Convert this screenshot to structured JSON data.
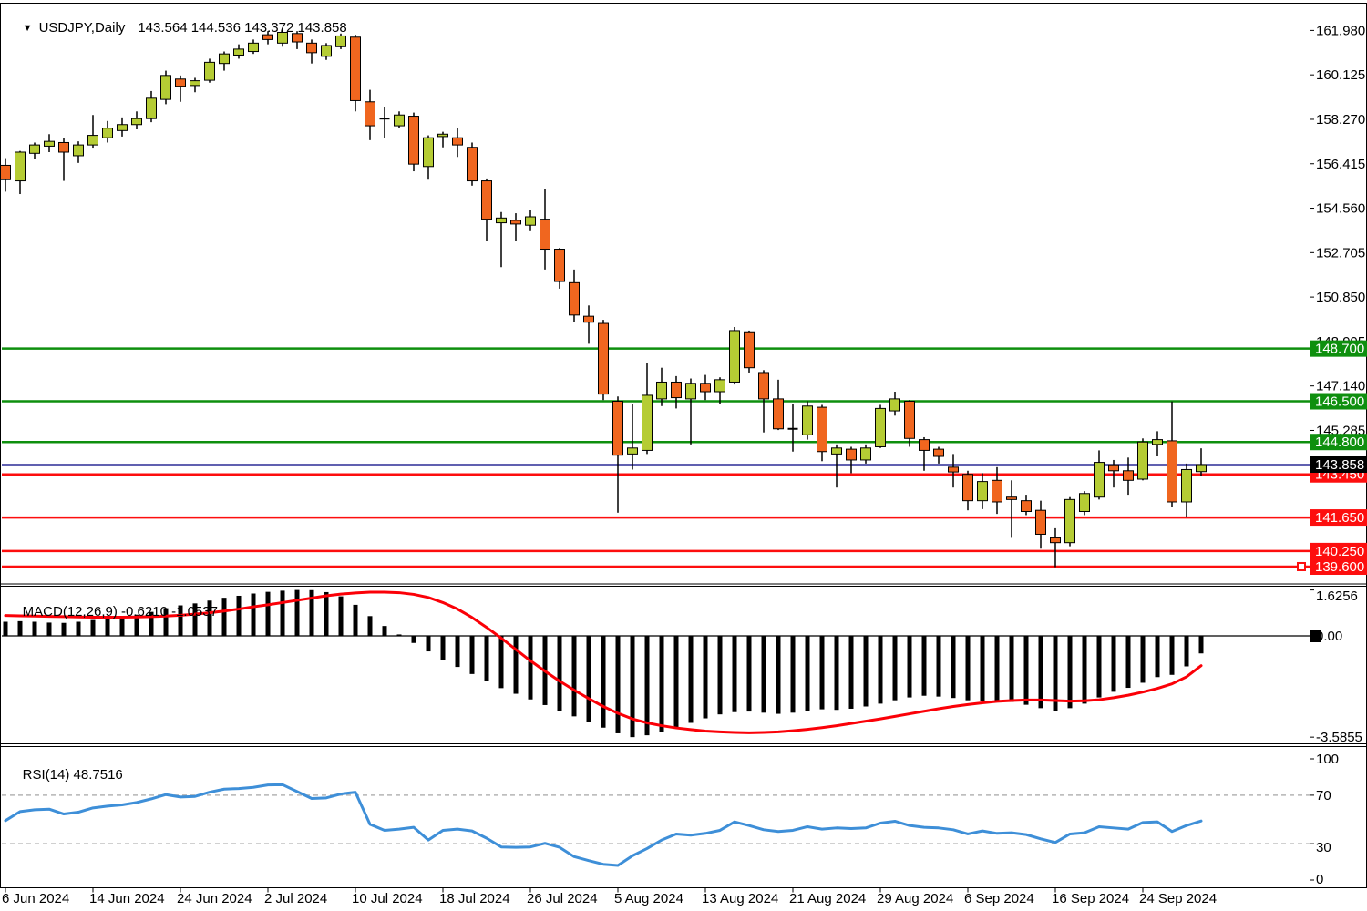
{
  "title": {
    "dropdown_glyph": "▼",
    "symbol": "USDJPY,Daily",
    "ohlc_text": "143.564 144.536 143.372 143.858"
  },
  "colors": {
    "bull": "#b5cc34",
    "bear": "#f0661f",
    "candle_outline": "#000000",
    "level_green": "#0e8f0e",
    "level_red": "#fd0e0e",
    "current_badge_bg": "#000000",
    "current_line": "#000080",
    "macd_hist": "#000000",
    "macd_signal": "#fb0007",
    "rsi_line": "#3e8fd8",
    "rsi_dashed": "#b5b5b5",
    "axis_text": "#000000",
    "badge_text": "#ffffff"
  },
  "axis": {
    "price_ticks": [
      "161.980",
      "160.125",
      "158.270",
      "156.415",
      "154.560",
      "152.705",
      "150.850",
      "148.995",
      "147.140",
      "145.285"
    ],
    "macd_ticks": [
      "1.6256",
      "0.00",
      "-3.5855"
    ],
    "rsi_ticks": [
      "100",
      "70",
      "30",
      "0"
    ],
    "dates": [
      "6 Jun 2024",
      "14 Jun 2024",
      "24 Jun 2024",
      "2 Jul 2024",
      "10 Jul 2024",
      "18 Jul 2024",
      "26 Jul 2024",
      "5 Aug 2024",
      "13 Aug 2024",
      "21 Aug 2024",
      "29 Aug 2024",
      "6 Sep 2024",
      "16 Sep 2024",
      "24 Sep 2024"
    ],
    "date_bar_indexes": [
      0,
      6,
      12,
      18,
      24,
      30,
      36,
      42,
      48,
      54,
      60,
      66,
      72,
      78
    ]
  },
  "panels": {
    "macd_name": "MACD(12,26,9)",
    "macd_values": "-0.6210 -1.0537",
    "rsi_name": "RSI(14)",
    "rsi_value": "48.7516"
  },
  "levels": [
    {
      "value": "148.700",
      "price": 148.7,
      "kind": "green"
    },
    {
      "value": "146.500",
      "price": 146.5,
      "kind": "green"
    },
    {
      "value": "144.800",
      "price": 144.8,
      "kind": "green"
    },
    {
      "value": "143.450",
      "price": 143.45,
      "kind": "red"
    },
    {
      "value": "141.650",
      "price": 141.65,
      "kind": "red"
    },
    {
      "value": "140.250",
      "price": 140.25,
      "kind": "red"
    },
    {
      "value": "139.600",
      "price": 139.6,
      "kind": "red",
      "handle": true
    }
  ],
  "current_price": {
    "value": "143.858",
    "price": 143.858
  },
  "chart_data": [
    {
      "type": "candlestick",
      "title": "USDJPY,Daily",
      "ylim": [
        139.0,
        162.4
      ],
      "x_dates": [
        "6 Jun 2024",
        "14 Jun 2024",
        "24 Jun 2024",
        "2 Jul 2024",
        "10 Jul 2024",
        "18 Jul 2024",
        "26 Jul 2024",
        "5 Aug 2024",
        "13 Aug 2024",
        "21 Aug 2024",
        "29 Aug 2024",
        "6 Sep 2024",
        "16 Sep 2024",
        "24 Sep 2024"
      ],
      "ohlc": [
        [
          156.35,
          156.65,
          155.25,
          155.75
        ],
        [
          155.7,
          156.95,
          155.15,
          156.9
        ],
        [
          156.85,
          157.3,
          156.6,
          157.2
        ],
        [
          157.15,
          157.65,
          156.9,
          157.35
        ],
        [
          157.3,
          157.5,
          155.7,
          156.9
        ],
        [
          156.75,
          157.35,
          156.45,
          157.2
        ],
        [
          157.2,
          158.45,
          157.05,
          157.6
        ],
        [
          157.5,
          158.2,
          157.3,
          157.9
        ],
        [
          157.8,
          158.35,
          157.55,
          158.05
        ],
        [
          158.05,
          158.6,
          157.85,
          158.3
        ],
        [
          158.3,
          159.45,
          158.15,
          159.15
        ],
        [
          159.1,
          160.3,
          158.9,
          160.1
        ],
        [
          159.95,
          160.1,
          159.0,
          159.65
        ],
        [
          159.68,
          160.0,
          159.4,
          159.88
        ],
        [
          159.9,
          160.8,
          159.8,
          160.65
        ],
        [
          160.6,
          161.1,
          160.3,
          161.0
        ],
        [
          160.95,
          161.4,
          160.8,
          161.2
        ],
        [
          161.1,
          161.6,
          161.0,
          161.45
        ],
        [
          161.8,
          161.95,
          161.4,
          161.6
        ],
        [
          161.45,
          162.0,
          161.3,
          161.9
        ],
        [
          161.85,
          161.95,
          161.2,
          161.5
        ],
        [
          161.45,
          161.6,
          160.6,
          161.05
        ],
        [
          160.9,
          161.45,
          160.75,
          161.35
        ],
        [
          161.3,
          161.85,
          161.2,
          161.75
        ],
        [
          161.7,
          161.8,
          158.6,
          159.05
        ],
        [
          159.0,
          159.5,
          157.4,
          158.0
        ],
        [
          158.25,
          158.8,
          157.5,
          158.3
        ],
        [
          158.0,
          158.6,
          157.9,
          158.45
        ],
        [
          158.4,
          158.55,
          156.1,
          156.4
        ],
        [
          156.3,
          157.6,
          155.75,
          157.5
        ],
        [
          157.55,
          157.75,
          157.1,
          157.65
        ],
        [
          157.5,
          157.9,
          156.7,
          157.2
        ],
        [
          157.1,
          157.3,
          155.5,
          155.7
        ],
        [
          155.7,
          155.8,
          153.2,
          154.1
        ],
        [
          153.95,
          154.4,
          152.1,
          154.15
        ],
        [
          154.05,
          154.35,
          153.2,
          153.9
        ],
        [
          153.85,
          154.5,
          153.6,
          154.2
        ],
        [
          154.1,
          155.35,
          152.0,
          152.85
        ],
        [
          152.85,
          152.9,
          151.2,
          151.5
        ],
        [
          151.45,
          152.0,
          149.8,
          150.1
        ],
        [
          150.05,
          150.5,
          148.9,
          149.8
        ],
        [
          149.75,
          149.9,
          146.55,
          146.8
        ],
        [
          146.5,
          146.7,
          141.85,
          144.25
        ],
        [
          144.3,
          146.4,
          143.65,
          144.55
        ],
        [
          144.45,
          148.1,
          144.3,
          146.75
        ],
        [
          146.6,
          147.9,
          146.3,
          147.3
        ],
        [
          147.3,
          147.55,
          146.2,
          146.65
        ],
        [
          146.6,
          147.45,
          144.7,
          147.25
        ],
        [
          147.25,
          147.6,
          146.55,
          146.9
        ],
        [
          146.9,
          147.5,
          146.4,
          147.4
        ],
        [
          147.3,
          149.6,
          147.2,
          149.45
        ],
        [
          149.4,
          149.45,
          147.7,
          147.9
        ],
        [
          147.7,
          147.8,
          145.2,
          146.6
        ],
        [
          146.6,
          147.4,
          145.3,
          145.35
        ],
        [
          145.35,
          146.4,
          144.4,
          145.3
        ],
        [
          145.1,
          146.5,
          144.9,
          146.3
        ],
        [
          146.25,
          146.35,
          144.0,
          144.4
        ],
        [
          144.3,
          144.7,
          142.9,
          144.55
        ],
        [
          144.5,
          144.6,
          143.5,
          144.05
        ],
        [
          144.05,
          144.7,
          143.9,
          144.55
        ],
        [
          144.6,
          146.35,
          144.55,
          146.2
        ],
        [
          146.1,
          146.9,
          145.9,
          146.6
        ],
        [
          146.5,
          146.55,
          144.6,
          144.95
        ],
        [
          144.9,
          145.0,
          143.6,
          144.45
        ],
        [
          144.5,
          144.6,
          143.9,
          144.2
        ],
        [
          143.75,
          144.3,
          142.9,
          143.55
        ],
        [
          143.45,
          143.6,
          141.95,
          142.35
        ],
        [
          142.35,
          143.5,
          142.0,
          143.15
        ],
        [
          143.2,
          143.75,
          141.8,
          142.3
        ],
        [
          142.5,
          143.2,
          140.8,
          142.4
        ],
        [
          142.35,
          142.6,
          141.75,
          141.9
        ],
        [
          141.95,
          142.35,
          140.35,
          140.95
        ],
        [
          140.8,
          141.2,
          139.58,
          140.6
        ],
        [
          140.6,
          142.5,
          140.45,
          142.4
        ],
        [
          141.9,
          142.75,
          141.75,
          142.65
        ],
        [
          142.5,
          144.45,
          142.4,
          143.95
        ],
        [
          143.85,
          144.05,
          142.9,
          143.6
        ],
        [
          143.6,
          144.15,
          142.6,
          143.2
        ],
        [
          143.25,
          144.95,
          143.2,
          144.8
        ],
        [
          144.7,
          145.25,
          144.2,
          144.9
        ],
        [
          144.85,
          146.49,
          142.1,
          142.3
        ],
        [
          142.3,
          143.9,
          141.65,
          143.65
        ],
        [
          143.564,
          144.536,
          143.372,
          143.858
        ]
      ]
    },
    {
      "type": "bar",
      "name": "MACD(12,26,9)",
      "last_values": "-0.6210 -1.0537",
      "ylim": [
        -3.5855,
        1.6256
      ],
      "hist": [
        0.5,
        0.52,
        0.5,
        0.47,
        0.46,
        0.5,
        0.56,
        0.62,
        0.68,
        0.75,
        0.85,
        0.98,
        1.08,
        1.15,
        1.25,
        1.35,
        1.42,
        1.5,
        1.56,
        1.6,
        1.6256,
        1.62,
        1.55,
        1.4,
        1.1,
        0.7,
        0.35,
        0.05,
        -0.25,
        -0.55,
        -0.85,
        -1.1,
        -1.35,
        -1.6,
        -1.85,
        -2.05,
        -2.25,
        -2.45,
        -2.65,
        -2.85,
        -3.05,
        -3.25,
        -3.45,
        -3.5855,
        -3.52,
        -3.4,
        -3.25,
        -3.08,
        -2.92,
        -2.78,
        -2.7,
        -2.68,
        -2.72,
        -2.76,
        -2.72,
        -2.66,
        -2.6,
        -2.62,
        -2.58,
        -2.5,
        -2.4,
        -2.28,
        -2.18,
        -2.12,
        -2.15,
        -2.2,
        -2.28,
        -2.32,
        -2.3,
        -2.34,
        -2.44,
        -2.56,
        -2.66,
        -2.56,
        -2.4,
        -2.18,
        -1.98,
        -1.84,
        -1.66,
        -1.46,
        -1.38,
        -1.08,
        -0.621
      ],
      "signal": [
        0.72,
        0.71,
        0.7,
        0.69,
        0.68,
        0.67,
        0.66,
        0.66,
        0.66,
        0.67,
        0.68,
        0.7,
        0.73,
        0.77,
        0.82,
        0.88,
        0.95,
        1.03,
        1.1,
        1.18,
        1.26,
        1.34,
        1.42,
        1.48,
        1.52,
        1.55,
        1.55,
        1.53,
        1.47,
        1.36,
        1.18,
        0.95,
        0.65,
        0.3,
        -0.08,
        -0.48,
        -0.88,
        -1.25,
        -1.6,
        -1.92,
        -2.22,
        -2.5,
        -2.74,
        -2.94,
        -3.08,
        -3.18,
        -3.26,
        -3.32,
        -3.37,
        -3.4,
        -3.42,
        -3.43,
        -3.42,
        -3.4,
        -3.36,
        -3.31,
        -3.25,
        -3.18,
        -3.1,
        -3.02,
        -2.94,
        -2.85,
        -2.76,
        -2.67,
        -2.58,
        -2.5,
        -2.43,
        -2.37,
        -2.32,
        -2.29,
        -2.27,
        -2.27,
        -2.29,
        -2.31,
        -2.3,
        -2.26,
        -2.19,
        -2.1,
        -1.99,
        -1.86,
        -1.7,
        -1.45,
        -1.0537
      ]
    },
    {
      "type": "line",
      "name": "RSI(14)",
      "last_value": 48.7516,
      "ylim": [
        0,
        100
      ],
      "levels": [
        70,
        30
      ],
      "values": [
        49,
        56.5,
        58,
        58.5,
        54.5,
        56,
        59.5,
        61,
        62,
        64,
        67,
        70.5,
        68.5,
        69,
        72.5,
        75,
        75.5,
        76.5,
        78.5,
        78.7,
        73,
        67.3,
        67.8,
        71,
        72.5,
        46,
        41,
        42,
        43.5,
        33,
        41,
        42,
        40.5,
        34.5,
        27.3,
        27,
        27.3,
        30.3,
        27,
        19.3,
        16,
        13,
        12,
        20,
        26,
        33,
        38,
        37,
        38.5,
        41,
        48,
        45,
        41.5,
        40,
        41,
        44,
        42,
        43,
        42.5,
        43,
        47,
        48.5,
        45,
        43.5,
        43,
        41.5,
        38,
        40.5,
        38.5,
        39,
        37.5,
        34,
        31,
        38,
        39,
        44,
        43,
        42,
        47.5,
        48,
        40,
        45,
        48.7516
      ]
    }
  ]
}
